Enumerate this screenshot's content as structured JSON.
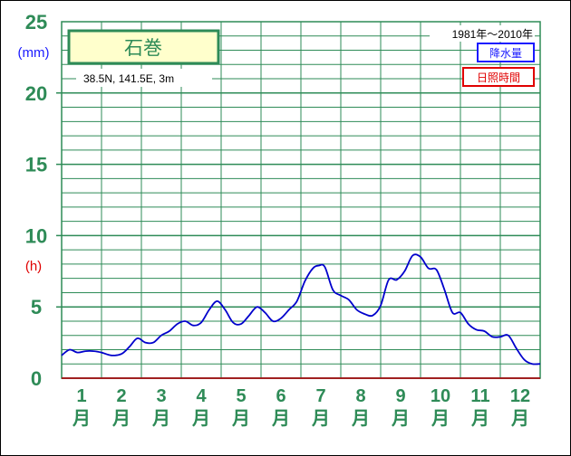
{
  "chart_data": {
    "type": "line",
    "title": "石巻",
    "location": "38.5N, 141.5E, 3m",
    "period": "1981年〜2010年",
    "legend": [
      "降水量",
      "日照時間"
    ],
    "unit_precip": "(mm)",
    "unit_sun": "(h)",
    "y_ticks": [
      "0",
      "5",
      "10",
      "15",
      "20",
      "25"
    ],
    "ylim": [
      0,
      25
    ],
    "xlim": [
      0,
      12
    ],
    "months": [
      {
        "num": "1",
        "unit": "月"
      },
      {
        "num": "2",
        "unit": "月"
      },
      {
        "num": "3",
        "unit": "月"
      },
      {
        "num": "4",
        "unit": "月"
      },
      {
        "num": "5",
        "unit": "月"
      },
      {
        "num": "6",
        "unit": "月"
      },
      {
        "num": "7",
        "unit": "月"
      },
      {
        "num": "8",
        "unit": "月"
      },
      {
        "num": "9",
        "unit": "月"
      },
      {
        "num": "10",
        "unit": "月"
      },
      {
        "num": "11",
        "unit": "月"
      },
      {
        "num": "12",
        "unit": "月"
      }
    ],
    "series": [
      {
        "name": "降水量",
        "color": "#0000cc",
        "x": [
          0,
          0.2,
          0.4,
          0.6,
          0.8,
          1.0,
          1.25,
          1.5,
          1.7,
          1.9,
          2.1,
          2.3,
          2.5,
          2.7,
          2.9,
          3.1,
          3.3,
          3.5,
          3.7,
          3.9,
          4.1,
          4.3,
          4.5,
          4.7,
          4.9,
          5.1,
          5.3,
          5.5,
          5.7,
          5.9,
          6.1,
          6.3,
          6.45,
          6.6,
          6.8,
          7.0,
          7.2,
          7.4,
          7.6,
          7.8,
          8.0,
          8.2,
          8.4,
          8.6,
          8.8,
          9.0,
          9.2,
          9.4,
          9.6,
          9.8,
          10.0,
          10.2,
          10.4,
          10.6,
          10.8,
          11.0,
          11.2,
          11.4,
          11.6,
          11.8,
          12.0
        ],
        "values": [
          1.6,
          2.0,
          1.8,
          1.9,
          1.9,
          1.8,
          1.6,
          1.7,
          2.2,
          2.8,
          2.5,
          2.5,
          3.0,
          3.3,
          3.8,
          4.0,
          3.7,
          3.9,
          4.8,
          5.4,
          4.8,
          3.9,
          3.8,
          4.4,
          5.0,
          4.6,
          4.0,
          4.2,
          4.8,
          5.4,
          6.8,
          7.7,
          7.9,
          7.8,
          6.2,
          5.8,
          5.5,
          4.8,
          4.5,
          4.4,
          5.1,
          6.9,
          6.9,
          7.5,
          8.6,
          8.5,
          7.7,
          7.6,
          6.2,
          4.6,
          4.6,
          3.8,
          3.4,
          3.3,
          2.9,
          2.9,
          3.0,
          2.1,
          1.3,
          1.0,
          1.0
        ]
      }
    ]
  }
}
